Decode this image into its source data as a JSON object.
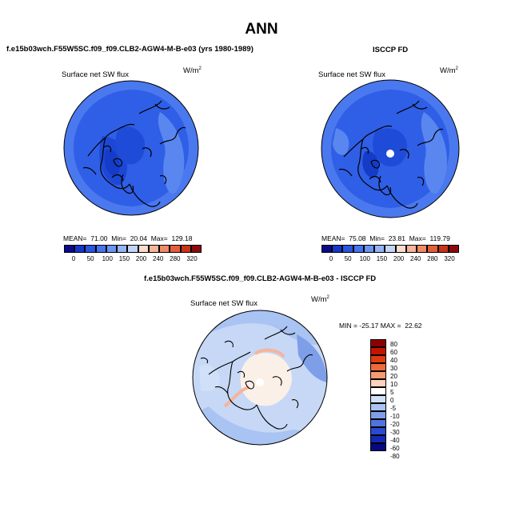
{
  "page": {
    "title": "ANN",
    "left_panel_title": "f.e15b03wch.F55W5SC.f09_f09.CLB2-AGW4-M-B-e03 (yrs 1980-1989)",
    "right_panel_title": "ISCCP FD",
    "diff_panel_title": "f.e15b03wch.F55W5SC.f09_f09.CLB2-AGW4-M-B-e03 - ISCCP FD"
  },
  "panels": [
    {
      "id": "model",
      "variable_label": "Surface net SW flux",
      "units_base": "W/m",
      "units_exp": "2",
      "mean_label": "MEAN=",
      "mean": "71.00",
      "min_label": "Min=",
      "min": "20.04",
      "max_label": "Max=",
      "max": "129.18"
    },
    {
      "id": "obs",
      "variable_label": "Surface net SW flux",
      "units_base": "W/m",
      "units_exp": "2",
      "mean_label": "MEAN=",
      "mean": "75.08",
      "min_label": "Min=",
      "min": "23.81",
      "max_label": "Max=",
      "max": "119.79"
    },
    {
      "id": "diff",
      "variable_label": "Surface net SW flux",
      "units_base": "W/m",
      "units_exp": "2",
      "min_label": "MIN =",
      "min": "-25.17",
      "max_label": "MAX =",
      "max": "22.62"
    }
  ],
  "colorbar_abs": {
    "colors": [
      "#0a0a8c",
      "#1437c8",
      "#2a55e0",
      "#4674ee",
      "#6a94f2",
      "#95b4f5",
      "#c2d4f8",
      "#f8dccc",
      "#f6b49a",
      "#f08a68",
      "#e45e3c",
      "#c83418",
      "#8c0a0a"
    ],
    "labels": [
      "0",
      "50",
      "100",
      "150",
      "200",
      "240",
      "280",
      "320"
    ]
  },
  "colorbar_diff": {
    "colors": [
      "#8c0000",
      "#c41400",
      "#e03a10",
      "#ee6a3a",
      "#f69a70",
      "#fcd2bc",
      "#ffffff",
      "#d0e0f8",
      "#a9c3f2",
      "#7f9ee8",
      "#4f74e0",
      "#2a4ad0",
      "#1428b4",
      "#080880"
    ],
    "labels": [
      "80",
      "60",
      "40",
      "30",
      "20",
      "10",
      "5",
      "0",
      "-5",
      "-10",
      "-20",
      "-30",
      "-40",
      "-60",
      "-80"
    ]
  },
  "chart_data": {
    "type": "heatmap",
    "title": "ANN",
    "projection": "North polar stereographic",
    "variable": "Surface net SW flux",
    "units": "W/m2",
    "panels": [
      {
        "name": "model (yrs 1980-1989)",
        "mean": 71.0,
        "min": 20.04,
        "max": 129.18,
        "contour_levels": [
          0,
          50,
          100,
          150,
          200,
          240,
          280,
          320
        ]
      },
      {
        "name": "ISCCP FD",
        "mean": 75.08,
        "min": 23.81,
        "max": 119.79,
        "contour_levels": [
          0,
          50,
          100,
          150,
          200,
          240,
          280,
          320
        ]
      },
      {
        "name": "model - ISCCP FD",
        "min": -25.17,
        "max": 22.62,
        "contour_levels": [
          -80,
          -60,
          -40,
          -30,
          -20,
          -10,
          -5,
          0,
          5,
          10,
          20,
          30,
          40,
          60,
          80
        ]
      }
    ]
  }
}
